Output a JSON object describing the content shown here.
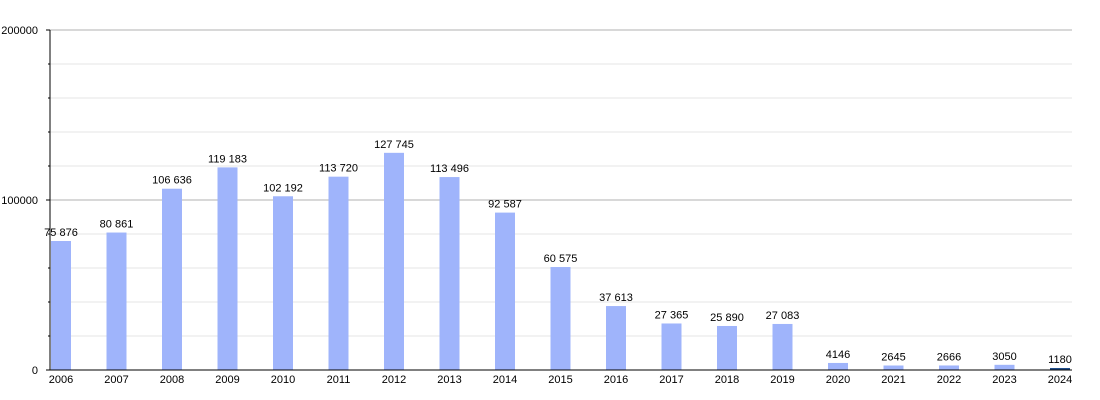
{
  "chart_data": {
    "type": "bar",
    "title": "",
    "xlabel": "",
    "ylabel": "",
    "ylim": [
      0,
      200000
    ],
    "yticks": [
      "0",
      "100000",
      "200000"
    ],
    "grid": true,
    "bar_color": "#9fb4fb",
    "highlight_color": "#1f4e8c",
    "highlight_category": "2024",
    "categories": [
      "2006",
      "2007",
      "2008",
      "2009",
      "2010",
      "2011",
      "2012",
      "2013",
      "2014",
      "2015",
      "2016",
      "2017",
      "2018",
      "2019",
      "2020",
      "2021",
      "2022",
      "2023",
      "2024"
    ],
    "values": [
      75876,
      80861,
      106636,
      119183,
      102192,
      113720,
      127745,
      113496,
      92587,
      60575,
      37613,
      27365,
      25890,
      27083,
      4146,
      2645,
      2666,
      3050,
      1180
    ],
    "value_labels": [
      "75 876",
      "80 861",
      "106 636",
      "119 183",
      "102 192",
      "113 720",
      "127 745",
      "113 496",
      "92 587",
      "60 575",
      "37 613",
      "27 365",
      "25 890",
      "27 083",
      "4146",
      "2645",
      "2666",
      "3050",
      "1180"
    ]
  }
}
